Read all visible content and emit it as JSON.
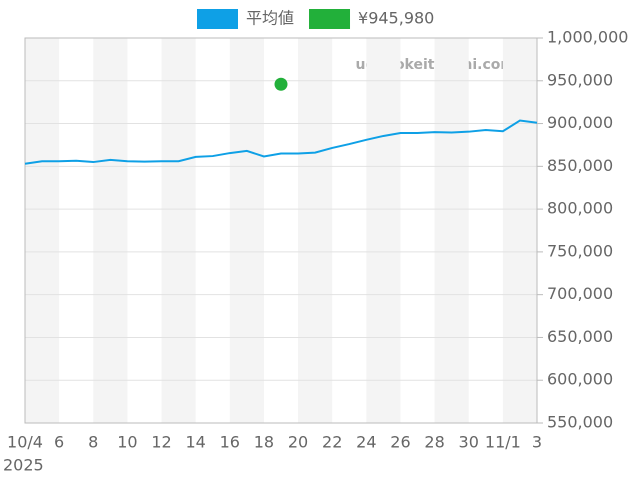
{
  "chart_data": {
    "type": "line",
    "categories": [
      "10/4",
      null,
      "6",
      null,
      "8",
      null,
      "10",
      null,
      "12",
      null,
      "14",
      null,
      "16",
      null,
      "18",
      null,
      "20",
      null,
      "22",
      null,
      "24",
      null,
      "26",
      null,
      "28",
      null,
      "30",
      null,
      "11/1",
      null,
      "3"
    ],
    "x_sublabel": "2025",
    "series": [
      {
        "name": "平均値",
        "color": "#0ea0e6",
        "values": [
          853000,
          856000,
          856000,
          856500,
          855000,
          857500,
          856000,
          855500,
          856000,
          856000,
          861000,
          862000,
          865500,
          868000,
          861500,
          865000,
          865000,
          866000,
          871500,
          876000,
          881000,
          885500,
          889000,
          889000,
          890000,
          889500,
          890500,
          892500,
          891000,
          903500,
          901000
        ]
      },
      {
        "name": "¥945,980",
        "color": "#22b03a",
        "values": [
          null,
          null,
          null,
          null,
          null,
          null,
          null,
          null,
          null,
          null,
          null,
          null,
          null,
          null,
          null,
          945980,
          null,
          null,
          null,
          null,
          null,
          null,
          null,
          null,
          null,
          null,
          null,
          null,
          null,
          null,
          null
        ]
      }
    ],
    "ylim": [
      550000,
      1000000
    ],
    "yticks": [
      {
        "value": 550000,
        "label": "550,000"
      },
      {
        "value": 600000,
        "label": "600,000"
      },
      {
        "value": 650000,
        "label": "650,000"
      },
      {
        "value": 700000,
        "label": "700,000"
      },
      {
        "value": 750000,
        "label": "750,000"
      },
      {
        "value": 800000,
        "label": "800,000"
      },
      {
        "value": 850000,
        "label": "850,000"
      },
      {
        "value": 900000,
        "label": "900,000"
      },
      {
        "value": 950000,
        "label": "950,000"
      },
      {
        "value": 1000000,
        "label": "1,000,000"
      }
    ],
    "grid": true,
    "watermark": "udedokeitoushi.com"
  }
}
